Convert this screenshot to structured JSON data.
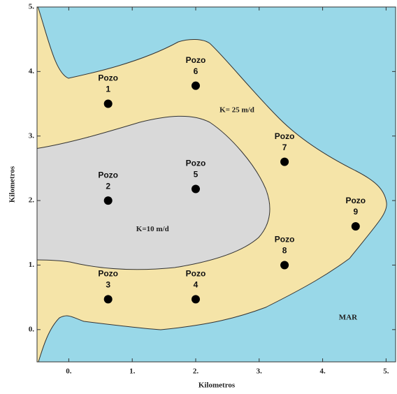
{
  "chart_data": {
    "type": "scatter",
    "xlabel": "Kilometros",
    "ylabel": "Kilometros",
    "series": [
      {
        "name": "Pozo",
        "color": "#000000",
        "x": [
          0.62,
          0.62,
          0.62,
          2.0,
          2.0,
          2.0,
          3.4,
          3.4,
          4.52
        ],
        "values": [
          3.5,
          2.0,
          0.47,
          0.47,
          2.18,
          3.78,
          2.6,
          1.0,
          1.6
        ],
        "labels": [
          "1",
          "2",
          "3",
          "4",
          "5",
          "6",
          "7",
          "8",
          "9"
        ]
      }
    ],
    "xlim": [
      -0.5,
      5.15
    ],
    "ylim": [
      -0.5,
      5
    ],
    "xticks": [
      {
        "value": 0,
        "label": "0."
      },
      {
        "value": 1,
        "label": "1."
      },
      {
        "value": 2,
        "label": "2."
      },
      {
        "value": 3,
        "label": "3."
      },
      {
        "value": 4,
        "label": "4."
      },
      {
        "value": 5,
        "label": "5."
      }
    ],
    "yticks": [
      {
        "value": 0,
        "label": "0."
      },
      {
        "value": 1,
        "label": "1."
      },
      {
        "value": 2,
        "label": "2."
      },
      {
        "value": 3,
        "label": "3."
      },
      {
        "value": 4,
        "label": "4."
      },
      {
        "value": 5,
        "label": "5."
      }
    ],
    "annotations": [
      {
        "text": "K= 25 m/d",
        "x": 2.65,
        "y": 3.4
      },
      {
        "text": "K=10 m/d",
        "x": 1.32,
        "y": 1.55
      },
      {
        "text": "MAR",
        "x": 4.4,
        "y": 0.18
      }
    ]
  }
}
